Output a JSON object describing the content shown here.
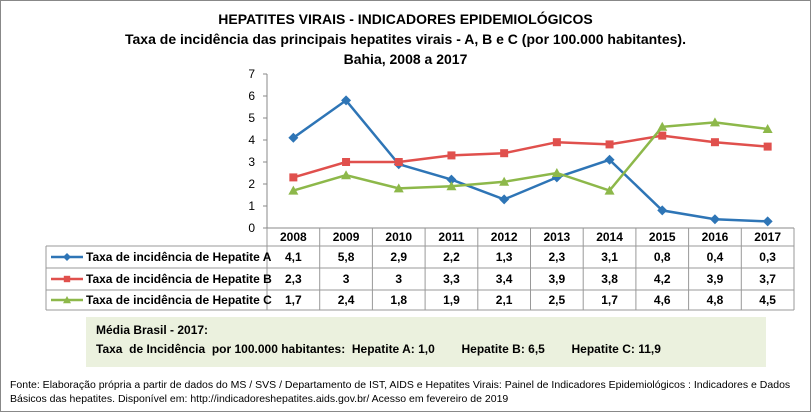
{
  "chart_data": {
    "type": "line",
    "title": "HEPATITES VIRAIS - INDICADORES EPIDEMIOLÓGICOS",
    "subtitle": "Taxa de incidência das principais hepatites virais - A, B e C (por 100.000 habitantes).",
    "subtitle2": "Bahia, 2008 a 2017",
    "categories": [
      "2008",
      "2009",
      "2010",
      "2011",
      "2012",
      "2013",
      "2014",
      "2015",
      "2016",
      "2017"
    ],
    "ylim": [
      0,
      7
    ],
    "yticks": [
      0,
      1,
      2,
      3,
      4,
      5,
      6,
      7
    ],
    "grid": false,
    "legend": "data-table",
    "series": [
      {
        "name": "Taxa de incidência de Hepatite A",
        "color": "#2e75b6",
        "marker": "diamond",
        "values": [
          4.1,
          5.8,
          2.9,
          2.2,
          1.3,
          2.3,
          3.1,
          0.8,
          0.4,
          0.3
        ],
        "labels": [
          "4,1",
          "5,8",
          "2,9",
          "2,2",
          "1,3",
          "2,3",
          "3,1",
          "0,8",
          "0,4",
          "0,3"
        ]
      },
      {
        "name": "Taxa de incidência de Hepatite B",
        "color": "#e0504d",
        "marker": "square",
        "values": [
          2.3,
          3,
          3,
          3.3,
          3.4,
          3.9,
          3.8,
          4.2,
          3.9,
          3.7
        ],
        "labels": [
          "2,3",
          "3",
          "3",
          "3,3",
          "3,4",
          "3,9",
          "3,8",
          "4,2",
          "3,9",
          "3,7"
        ]
      },
      {
        "name": "Taxa de incidência de Hepatite C",
        "color": "#8db84a",
        "marker": "triangle",
        "values": [
          1.7,
          2.4,
          1.8,
          1.9,
          2.1,
          2.5,
          1.7,
          4.6,
          4.8,
          4.5
        ],
        "labels": [
          "1,7",
          "2,4",
          "1,8",
          "1,9",
          "2,1",
          "2,5",
          "1,7",
          "4,6",
          "4,8",
          "4,5"
        ]
      }
    ]
  },
  "note": {
    "line1": "Média Brasil  - 2017:",
    "prefix": "Taxa  de Incidência  por 100.000 habitantes:",
    "a": "Hepatite A: 1,0",
    "b": "Hepatite B: 6,5",
    "c": "Hepatite C: 11,9"
  },
  "source": "Fonte: Elaboração própria a partir de dados do MS / SVS / Departamento de IST, AIDS e Hepatites Virais:  Painel de Indicadores Epidemiológicos : Indicadores e Dados Básicos das hepatites.  Disponível em: http://indicadoreshepatites.aids.gov.br/      Acesso em fevereiro de 2019"
}
